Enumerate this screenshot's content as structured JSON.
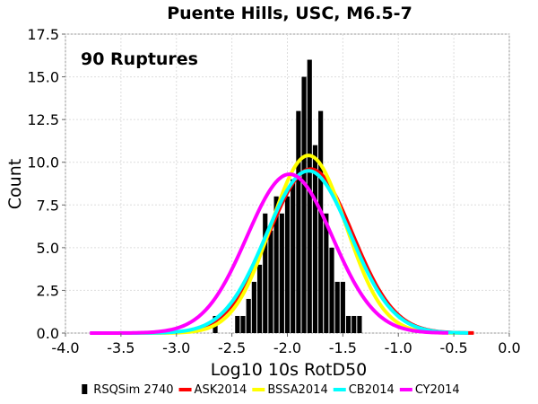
{
  "chart_data": {
    "type": "bar",
    "title": "Puente Hills, USC, M6.5-7",
    "xlabel": "Log10 10s RotD50",
    "ylabel": "Count",
    "annotation": "90 Ruptures",
    "xlim": [
      -4.0,
      0.0
    ],
    "ylim": [
      0.0,
      17.5
    ],
    "xticks": [
      "-4.0",
      "-3.5",
      "-3.0",
      "-2.5",
      "-2.0",
      "-1.5",
      "-1.0",
      "-0.5",
      "0.0"
    ],
    "yticks": [
      "0.0",
      "2.5",
      "5.0",
      "7.5",
      "10.0",
      "12.5",
      "15.0",
      "17.5"
    ],
    "grid": true,
    "legend_position": "bottom",
    "histogram": {
      "name": "RSQSim 2740",
      "color": "#000000",
      "bin_width": 0.05,
      "bin_centers": [
        -2.65,
        -2.45,
        -2.4,
        -2.35,
        -2.3,
        -2.25,
        -2.2,
        -2.15,
        -2.1,
        -2.05,
        -2.0,
        -1.95,
        -1.9,
        -1.85,
        -1.8,
        -1.75,
        -1.7,
        -1.65,
        -1.6,
        -1.55,
        -1.5,
        -1.45,
        -1.4,
        -1.35
      ],
      "counts": [
        1,
        1,
        1,
        2,
        3,
        4,
        7,
        6,
        8,
        7,
        8,
        9,
        13,
        15,
        16,
        11,
        13,
        7,
        5,
        3,
        3,
        1,
        1,
        1
      ]
    },
    "series": [
      {
        "name": "ASK2014",
        "color": "#ff0000",
        "mean": -1.79,
        "sd": 0.377,
        "peak": 9.6,
        "x_range": [
          -3.65,
          -0.32
        ]
      },
      {
        "name": "BSSA2014",
        "color": "#ffff00",
        "mean": -1.81,
        "sd": 0.338,
        "peak": 10.4,
        "x_range": [
          -3.65,
          -0.45
        ]
      },
      {
        "name": "CB2014",
        "color": "#00ffff",
        "mean": -1.81,
        "sd": 0.38,
        "peak": 9.5,
        "x_range": [
          -3.65,
          -0.37
        ]
      },
      {
        "name": "CY2014",
        "color": "#ff00ff",
        "mean": -1.98,
        "sd": 0.385,
        "peak": 9.3,
        "x_range": [
          -3.78,
          -0.55
        ]
      }
    ]
  }
}
